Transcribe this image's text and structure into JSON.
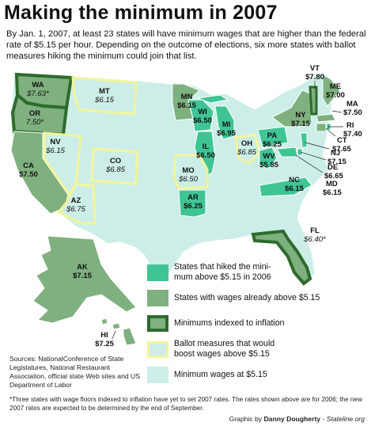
{
  "title": "Making the minimum in 2007",
  "intro": "By Jan. 1, 2007, at least 23 states will have minimum wages that are higher than the federal rate of $5.15 per hour. Depending on the outcome of elections, six more states with ballot measures hiking the minimum could join that list.",
  "colors": {
    "hiked_2006": "#3fc594",
    "above_515": "#7fb07f",
    "indexed_border": "#2d6b2d",
    "ballot_border": "#f2f59a",
    "at_515": "#cdeee8",
    "state_border": "#ffffff"
  },
  "legend": [
    {
      "key": "hiked_2006",
      "label": "States that hiked the mini-mum above $5.15 in 2006"
    },
    {
      "key": "above_515",
      "label": "States with wages already above $5.15"
    },
    {
      "key": "indexed",
      "label": "Minimums indexed to inflation"
    },
    {
      "key": "ballot",
      "label": "Ballot measures that would boost wages above $5.15"
    },
    {
      "key": "at_515",
      "label": "Minimum wages at $5.15"
    }
  ],
  "states": {
    "WA": {
      "abbr": "WA",
      "wage": "$7.63*"
    },
    "OR": {
      "abbr": "OR",
      "wage": "7.50*"
    },
    "CA": {
      "abbr": "CA",
      "wage": "$7.50"
    },
    "NV": {
      "abbr": "NV",
      "wage": "$6.15"
    },
    "AZ": {
      "abbr": "AZ",
      "wage": "$6.75"
    },
    "MT": {
      "abbr": "MT",
      "wage": "$6.15"
    },
    "CO": {
      "abbr": "CO",
      "wage": "$6.85"
    },
    "MN": {
      "abbr": "MN",
      "wage": "$6.15"
    },
    "WI": {
      "abbr": "WI",
      "wage": "$6.50"
    },
    "MI": {
      "abbr": "MI",
      "wage": "$6.95"
    },
    "IL": {
      "abbr": "IL",
      "wage": "$6.50"
    },
    "MO": {
      "abbr": "MO",
      "wage": "$6.50"
    },
    "AR": {
      "abbr": "AR",
      "wage": "$6.25"
    },
    "OH": {
      "abbr": "OH",
      "wage": "$6.85"
    },
    "PA": {
      "abbr": "PA",
      "wage": "$6.25"
    },
    "WV": {
      "abbr": "WV",
      "wage": "$5.85"
    },
    "NC": {
      "abbr": "NC",
      "wage": "$6.15"
    },
    "NY": {
      "abbr": "NY",
      "wage": "$7.15"
    },
    "VT": {
      "abbr": "VT",
      "wage": "$7.80"
    },
    "ME": {
      "abbr": "ME",
      "wage": "$7.00"
    },
    "MA": {
      "abbr": "MA",
      "wage": "$7.50"
    },
    "RI": {
      "abbr": "RI",
      "wage": "$7.40"
    },
    "CT": {
      "abbr": "CT",
      "wage": "$7.65"
    },
    "NJ": {
      "abbr": "NJ",
      "wage": "$7.15"
    },
    "DE": {
      "abbr": "DE",
      "wage": "$6.65"
    },
    "MD": {
      "abbr": "MD",
      "wage": "$6.15"
    },
    "FL": {
      "abbr": "FL",
      "wage": "$6.40*"
    },
    "AK": {
      "abbr": "AK",
      "wage": "$7.15"
    },
    "HI": {
      "abbr": "HI",
      "wage": "$7.25"
    }
  },
  "sources": "Sources: NationalConference of State Legislatures, National Restaurant Association, official state Web sites and US Department of Labor",
  "footnote": "*Three states with wage floors indexed to inflation have yet to set 2007 rates. The rates shown above are for 2006; the new 2007 rates are expected to be determined by the end of September.",
  "credit": {
    "prefix": "Graphic by",
    "author": "Danny Dougherty",
    "sep": " - ",
    "outlet": "Stateline.org"
  }
}
